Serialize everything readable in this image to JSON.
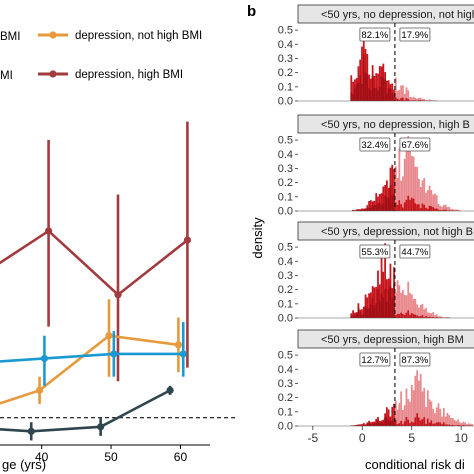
{
  "panel_b_letter": "b",
  "chart_data": [
    {
      "type": "line",
      "panel": "a",
      "xlabel_fragment": "ge (yrs)",
      "ylabel": "",
      "x_ticks": [
        "40",
        "50",
        "60"
      ],
      "xlim": [
        34,
        68
      ],
      "ylim": [
        -0.3,
        3.4
      ],
      "reference_line": 0.0,
      "legend": [
        {
          "label": "depression, not high BMI",
          "color": "#e69a3c"
        },
        {
          "label": "depression, high BMI",
          "color": "#a23b3f"
        }
      ],
      "legend_truncated": [
        {
          "label": "BMI",
          "color": "#1b9ad2"
        },
        {
          "label": "MI",
          "color": "#2f4650"
        }
      ],
      "series": [
        {
          "name": "depression, high BMI",
          "color": "#a23b3f",
          "x": [
            31,
            41,
            51,
            61
          ],
          "y": [
            1.55,
            2.05,
            1.35,
            1.95
          ],
          "lo": [
            0.9,
            1.0,
            0.4,
            0.55
          ],
          "hi": [
            2.4,
            3.05,
            2.45,
            3.25
          ]
        },
        {
          "name": "depression, not high BMI",
          "color": "#e69a3c",
          "x": [
            29.7,
            39.7,
            49.7,
            59.7
          ],
          "y": [
            0.05,
            0.3,
            0.9,
            0.8
          ],
          "lo": [
            -0.2,
            0.15,
            0.45,
            0.5
          ],
          "hi": [
            0.5,
            0.45,
            1.3,
            1.1
          ]
        },
        {
          "name": "BMI",
          "color": "#1b9ad2",
          "x": [
            30.4,
            40.4,
            50.4,
            60.4
          ],
          "y": [
            0.6,
            0.65,
            0.7,
            0.7
          ],
          "lo": [
            0.45,
            0.35,
            0.45,
            0.45
          ],
          "hi": [
            0.75,
            0.9,
            0.95,
            1.05
          ]
        },
        {
          "name": "MI",
          "color": "#2f4650",
          "x": [
            28.5,
            38.5,
            48.5,
            58.5
          ],
          "y": [
            -0.1,
            -0.15,
            -0.1,
            0.3
          ],
          "lo": [
            -0.2,
            -0.25,
            -0.2,
            0.25
          ],
          "hi": [
            0.05,
            -0.05,
            0.0,
            0.35
          ]
        }
      ]
    },
    {
      "type": "bar",
      "panel": "b",
      "xlabel": "conditional risk di",
      "ylabel": "density",
      "x_ticks": [
        "-5",
        "0",
        "5",
        "10"
      ],
      "y_ticks": [
        "0.0",
        "0.1",
        "0.2",
        "0.3",
        "0.4",
        "0.5"
      ],
      "xlim": [
        -6.5,
        11.3
      ],
      "ylim": [
        0,
        0.55
      ],
      "threshold": 3.3,
      "facets": [
        {
          "strip": "<50 yrs, no depression, not high",
          "pct_left": "82.1%",
          "pct_right": "17.9%",
          "center": 1.0,
          "sd": 2.2,
          "peak": 0.22,
          "spike_x": 0.0,
          "spike_h": 0.45
        },
        {
          "strip": "<50 yrs, no depression, high B",
          "pct_left": "32.4%",
          "pct_right": "67.6%",
          "center": 4.3,
          "sd": 1.9,
          "peak": 0.33,
          "spike_x": 4.8,
          "spike_h": 0.37
        },
        {
          "strip": "<50 yrs, depression, not high B",
          "pct_left": "55.3%",
          "pct_right": "44.7%",
          "center": 2.8,
          "sd": 2.0,
          "peak": 0.28,
          "spike_x": 2.2,
          "spike_h": 0.33
        },
        {
          "strip": "<50 yrs, depression, high BM",
          "pct_left": "12.7%",
          "pct_right": "87.3%",
          "center": 5.3,
          "sd": 2.3,
          "peak": 0.21,
          "spike_x": 5.5,
          "spike_h": 0.26
        }
      ]
    }
  ]
}
